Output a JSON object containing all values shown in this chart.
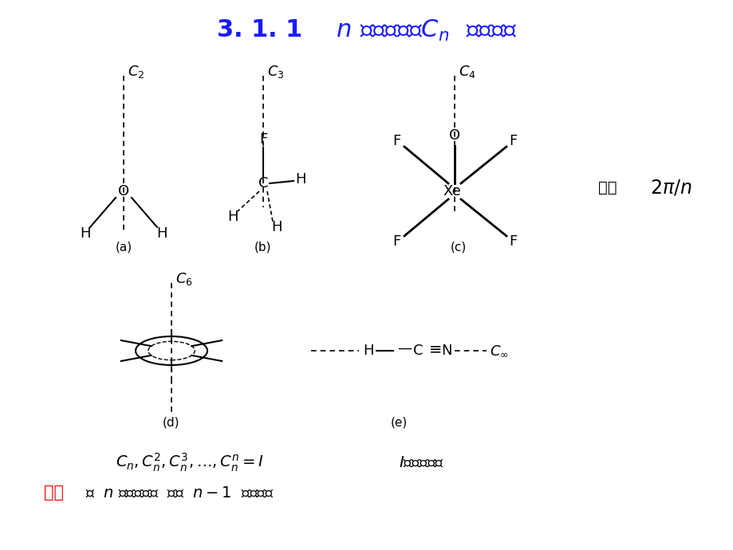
{
  "title": "3. 1. 1      n 重对称轴，  Cₙ  （转动）",
  "bg_color": "#ffffff",
  "title_color": "#1a1aff",
  "title_fontsize": 22,
  "eq_text": "$C_n, C_n^2, C_n^3, \\ldots, C_n^n = I$",
  "eq_note": "$I$为恒等操作",
  "main_axis_red": "主轴",
  "main_axis_text": "： $n$ 最大的轴。  产生 $n-1$ 个转动。",
  "rotation_angle_text": "转角   $2\\pi / n$",
  "label_a": "(a)",
  "label_b": "(b)",
  "label_c": "(c)",
  "label_d": "(d)",
  "label_e": "(e)"
}
